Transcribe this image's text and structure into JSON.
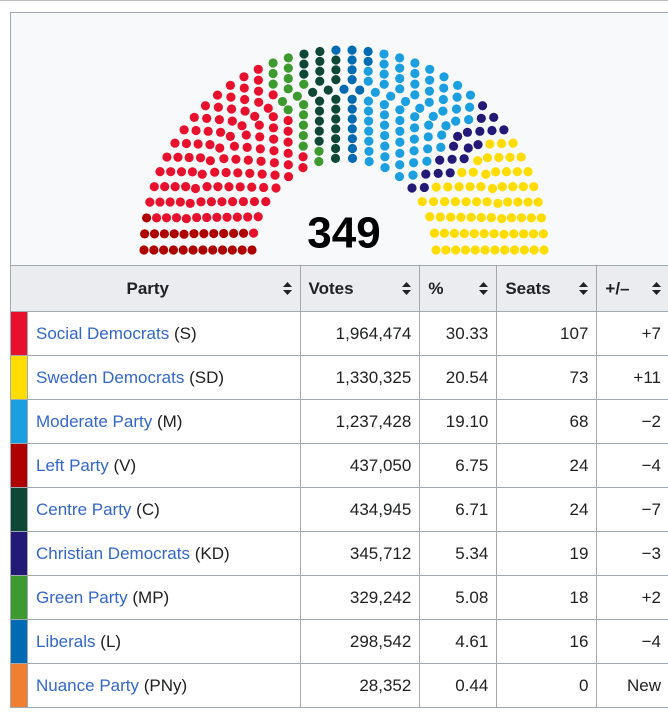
{
  "diagram": {
    "total": 349,
    "party_order": [
      3,
      0,
      6,
      4,
      7,
      2,
      5,
      1
    ]
  },
  "table": {
    "headers": [
      "Party",
      "Votes",
      "%",
      "Seats",
      "+/–"
    ],
    "rows": [
      {
        "party": "Social Democrats",
        "abbr": "(S)",
        "color": "#e8112d",
        "votes": "1,964,474",
        "pct": "30.33",
        "seats": 107,
        "change": "+7"
      },
      {
        "party": "Sweden Democrats",
        "abbr": "(SD)",
        "color": "#ffdd00",
        "votes": "1,330,325",
        "pct": "20.54",
        "seats": 73,
        "change": "+11"
      },
      {
        "party": "Moderate Party",
        "abbr": "(M)",
        "color": "#1b9fe1",
        "votes": "1,237,428",
        "pct": "19.10",
        "seats": 68,
        "change": "−2"
      },
      {
        "party": "Left Party",
        "abbr": "(V)",
        "color": "#af0000",
        "votes": "437,050",
        "pct": "6.75",
        "seats": 24,
        "change": "−4"
      },
      {
        "party": "Centre Party",
        "abbr": "(C)",
        "color": "#0e4735",
        "votes": "434,945",
        "pct": "6.71",
        "seats": 24,
        "change": "−7"
      },
      {
        "party": "Christian Democrats",
        "abbr": "(KD)",
        "color": "#231977",
        "votes": "345,712",
        "pct": "5.34",
        "seats": 19,
        "change": "−3"
      },
      {
        "party": "Green Party",
        "abbr": "(MP)",
        "color": "#3d9a2e",
        "votes": "329,242",
        "pct": "5.08",
        "seats": 18,
        "change": "+2"
      },
      {
        "party": "Liberals",
        "abbr": "(L)",
        "color": "#006ab3",
        "votes": "298,542",
        "pct": "4.61",
        "seats": 16,
        "change": "−4"
      },
      {
        "party": "Nuance Party",
        "abbr": "(PNy)",
        "color": "#f08030",
        "votes": "28,352",
        "pct": "0.44",
        "seats": 0,
        "change": "New"
      }
    ]
  }
}
